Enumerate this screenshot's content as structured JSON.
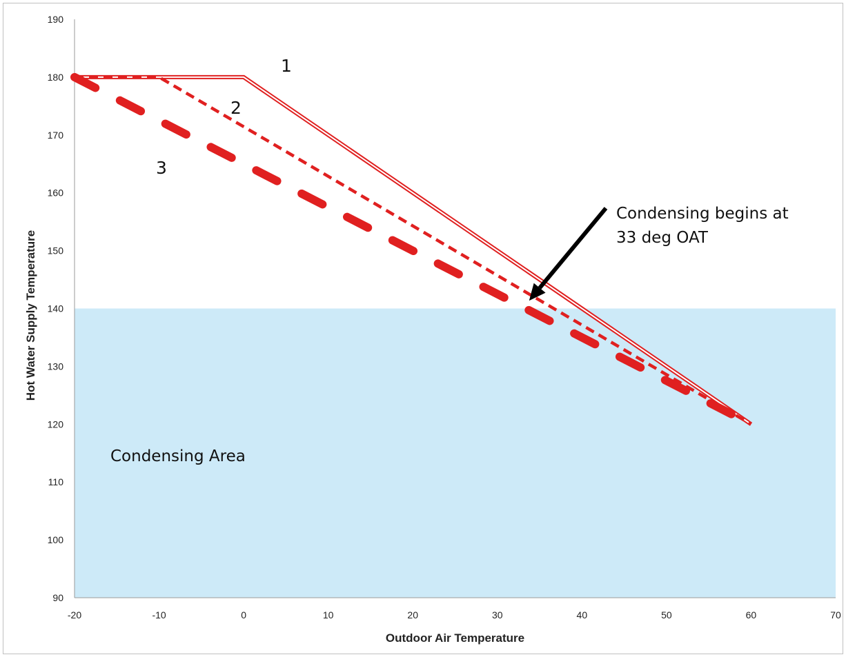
{
  "chart_data": {
    "type": "line",
    "title": "",
    "xlabel": "Outdoor Air Temperature",
    "ylabel": "Hot Water Supply Temperature",
    "xlim": [
      -20,
      70
    ],
    "ylim": [
      90,
      190
    ],
    "x_ticks": [
      -20,
      -10,
      0,
      10,
      20,
      30,
      40,
      50,
      60,
      70
    ],
    "y_ticks": [
      90,
      100,
      110,
      120,
      130,
      140,
      150,
      160,
      170,
      180,
      190
    ],
    "grid": false,
    "legend": "none",
    "shaded_region": {
      "label": "Condensing Area",
      "y_max": 140,
      "color": "#cdeaf8"
    },
    "series": [
      {
        "label": "1",
        "style": "double",
        "color": "#e02020",
        "x": [
          -20,
          0,
          60
        ],
        "y": [
          180,
          180,
          120
        ]
      },
      {
        "label": "2",
        "style": "short-dash",
        "color": "#e02020",
        "x": [
          -20,
          -10,
          60
        ],
        "y": [
          180,
          180,
          120
        ]
      },
      {
        "label": "3",
        "style": "long-dash",
        "color": "#e02020",
        "x": [
          -20,
          60
        ],
        "y": [
          180,
          120
        ]
      }
    ],
    "annotation": {
      "line1": "Condensing begins at",
      "line2": "33 deg OAT",
      "point": [
        34,
        141
      ]
    }
  }
}
